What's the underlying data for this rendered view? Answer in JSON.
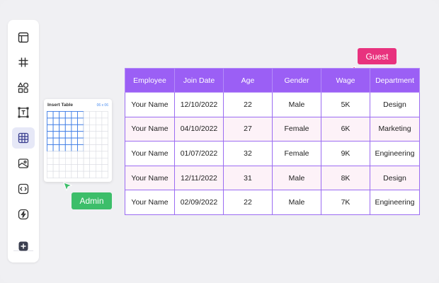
{
  "toolbar": {
    "tools": [
      {
        "icon": "layout-icon"
      },
      {
        "icon": "hashtag-icon"
      },
      {
        "icon": "shapes-icon"
      },
      {
        "icon": "text-box-icon"
      },
      {
        "icon": "table-icon",
        "active": true
      },
      {
        "icon": "image-icon"
      },
      {
        "icon": "embed-code-icon"
      },
      {
        "icon": "lightning-icon"
      },
      {
        "icon": "add-icon"
      }
    ]
  },
  "insert_table": {
    "title": "Insert Table",
    "size_label": "06 x 06",
    "selected_cols": 6,
    "selected_rows": 6,
    "total_cols": 10,
    "total_rows": 10
  },
  "collaborators": {
    "admin_label": "Admin",
    "admin_color": "#3dbe6a",
    "guest_label": "Guest",
    "guest_color": "#e8327e"
  },
  "table": {
    "headers": [
      "Employee",
      "Join Date",
      "Age",
      "Gender",
      "Wage",
      "Department"
    ],
    "rows": [
      [
        "Your Name",
        "12/10/2022",
        "22",
        "Male",
        "5K",
        "Design"
      ],
      [
        "Your Name",
        "04/10/2022",
        "27",
        "Female",
        "6K",
        "Marketing"
      ],
      [
        "Your Name",
        "01/07/2022",
        "32",
        "Female",
        "9K",
        "Engineering"
      ],
      [
        "Your Name",
        "12/11/2022",
        "31",
        "Male",
        "8K",
        "Design"
      ],
      [
        "Your Name",
        "02/09/2022",
        "22",
        "Male",
        "7K",
        "Engineering"
      ]
    ],
    "header_color": "#9b5ff5",
    "alt_row_color": "#fdf2f8"
  }
}
